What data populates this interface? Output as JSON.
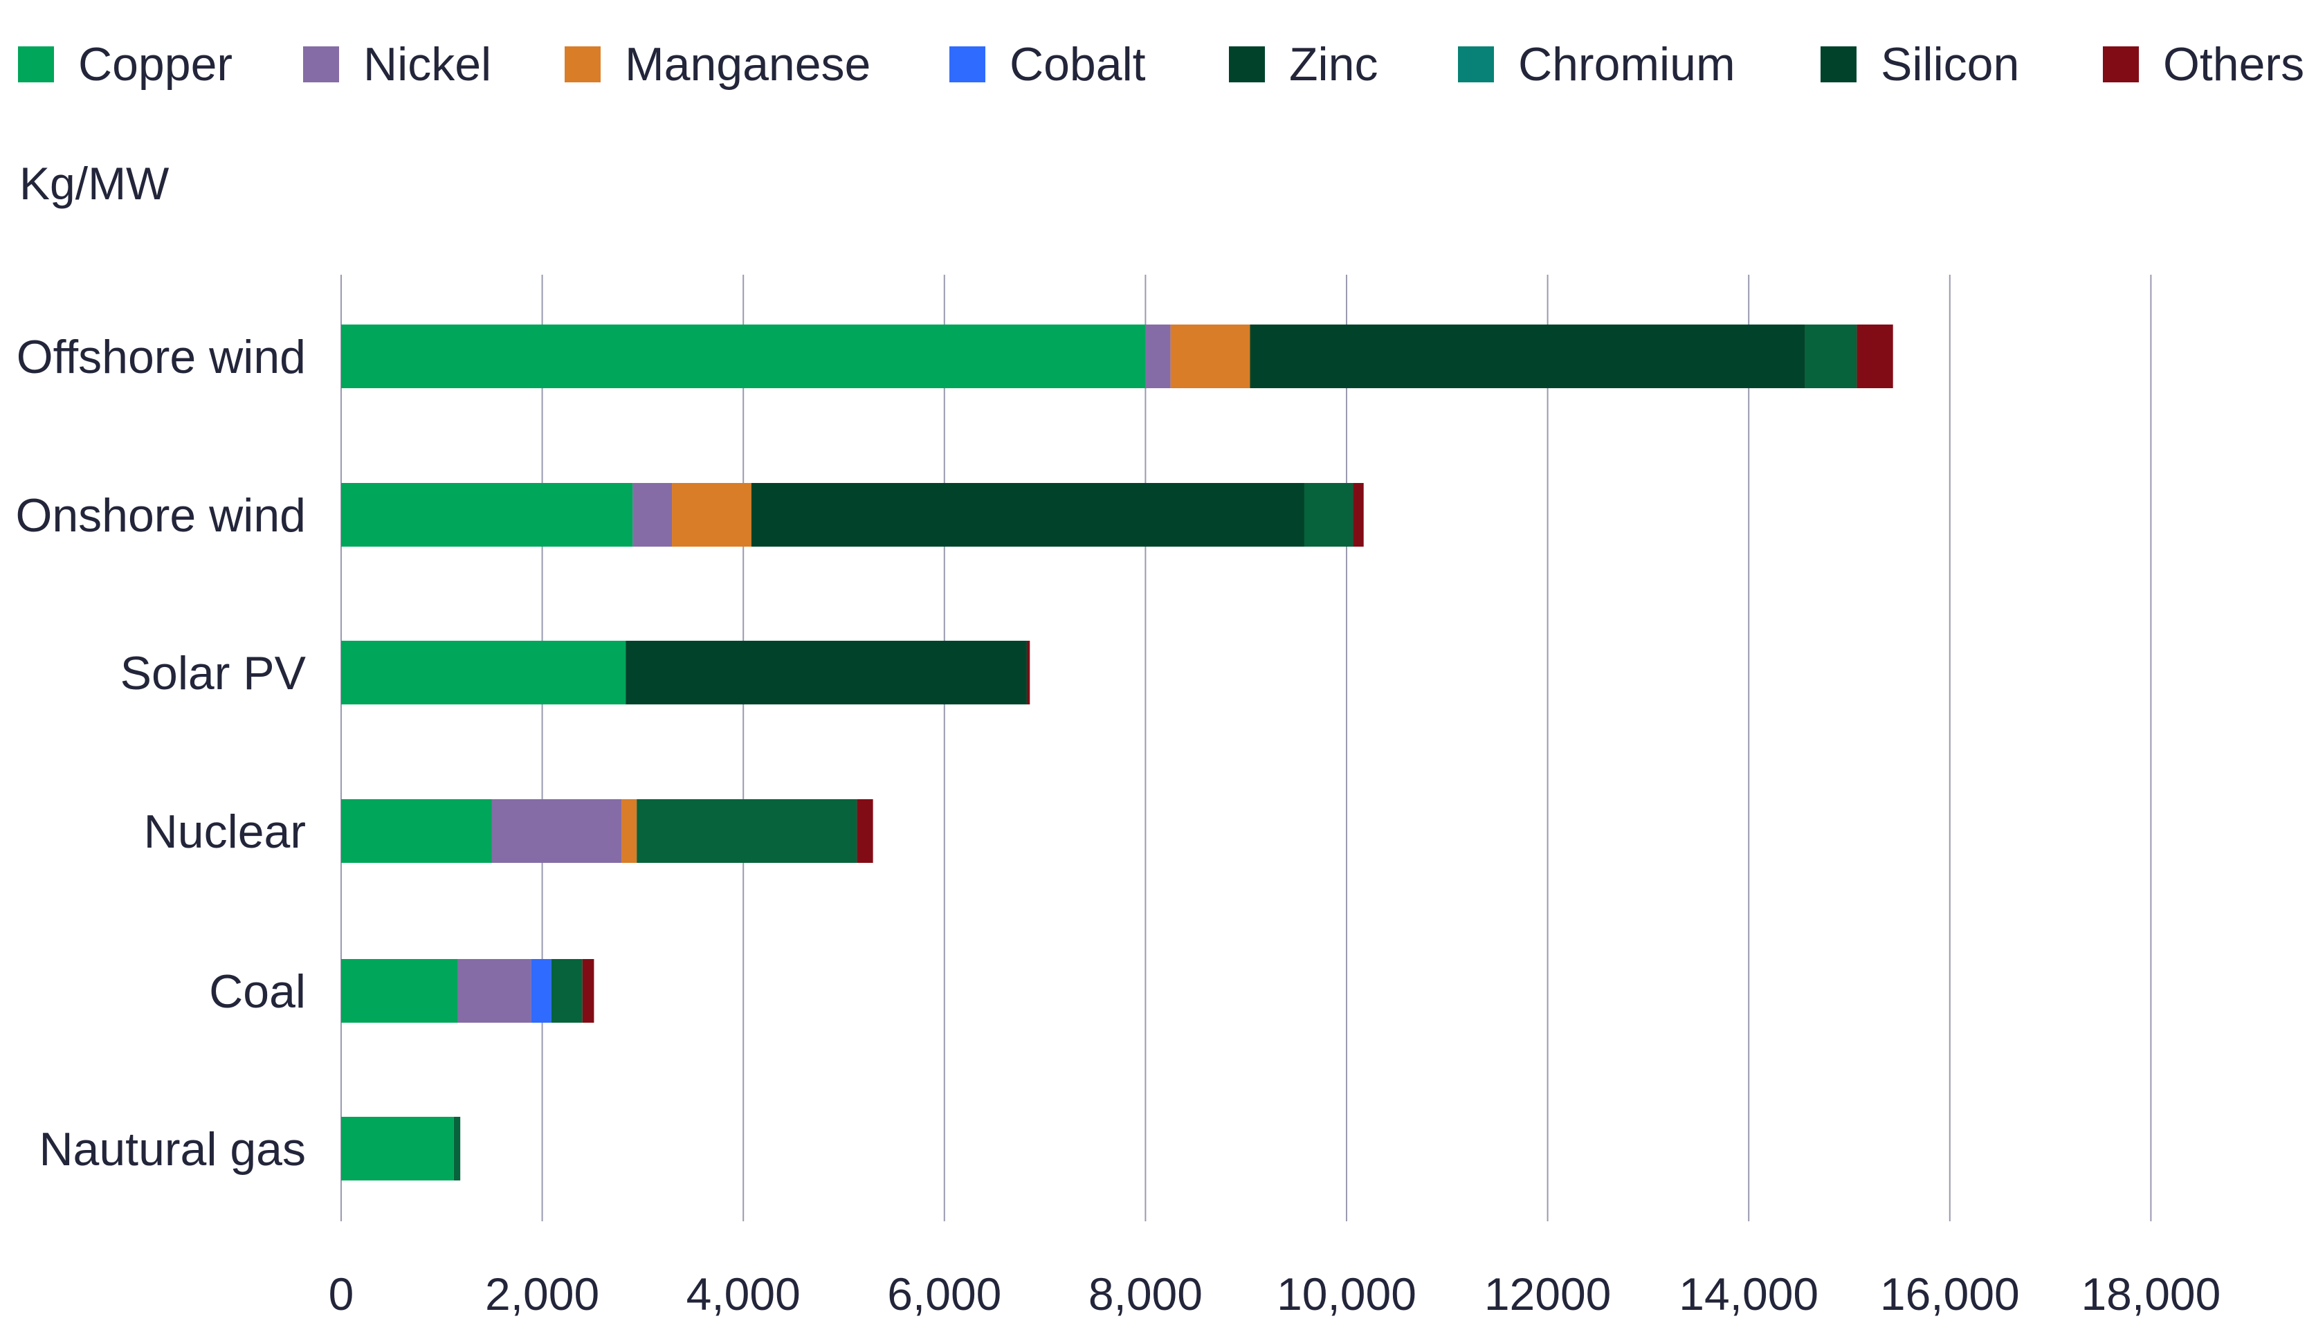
{
  "chart_data": {
    "type": "bar",
    "orientation": "horizontal",
    "stacked": true,
    "ylabel": "Kg/MW",
    "xlim": [
      0,
      18000
    ],
    "grid": true,
    "legend_position": "top",
    "x_ticks": [
      0,
      2000,
      4000,
      6000,
      8000,
      10000,
      12000,
      14000,
      16000,
      18000
    ],
    "x_tick_labels": [
      "0",
      "2,000",
      "4,000",
      "6,000",
      "8,000",
      "10,000",
      "12000",
      "14,000",
      "16,000",
      "18,000"
    ],
    "categories": [
      "Offshore wind",
      "Onshore wind",
      "Solar PV",
      "Nuclear",
      "Coal",
      "Nautural gas"
    ],
    "series": [
      {
        "name": "Copper",
        "legend_color": "#00a65a",
        "bar_color": "#00a65a",
        "values": [
          8000,
          2900,
          2830,
          1500,
          1160,
          1120
        ]
      },
      {
        "name": "Nickel",
        "legend_color": "#856ca6",
        "bar_color": "#856ca6",
        "values": [
          250,
          390,
          0,
          1290,
          730,
          0
        ]
      },
      {
        "name": "Manganese",
        "legend_color": "#d97d28",
        "bar_color": "#d97d28",
        "values": [
          790,
          790,
          0,
          150,
          0,
          0
        ]
      },
      {
        "name": "Cobalt",
        "legend_color": "#2f6bff",
        "bar_color": "#2f6bff",
        "values": [
          0,
          0,
          0,
          0,
          200,
          0
        ]
      },
      {
        "name": "Zinc",
        "legend_color": "#00432a",
        "bar_color": "#00432a",
        "values": [
          5520,
          5500,
          0,
          0,
          0,
          0
        ]
      },
      {
        "name": "Chromium",
        "legend_color": "#088276",
        "bar_color": "#06633b",
        "values": [
          515,
          485,
          0,
          2190,
          310,
          65
        ]
      },
      {
        "name": "Silicon",
        "legend_color": "#00432a",
        "bar_color": "#00432a",
        "values": [
          0,
          0,
          3990,
          0,
          0,
          0
        ]
      },
      {
        "name": "Others",
        "legend_color": "#820c15",
        "bar_color": "#820c15",
        "values": [
          360,
          105,
          30,
          160,
          115,
          0
        ]
      }
    ]
  }
}
